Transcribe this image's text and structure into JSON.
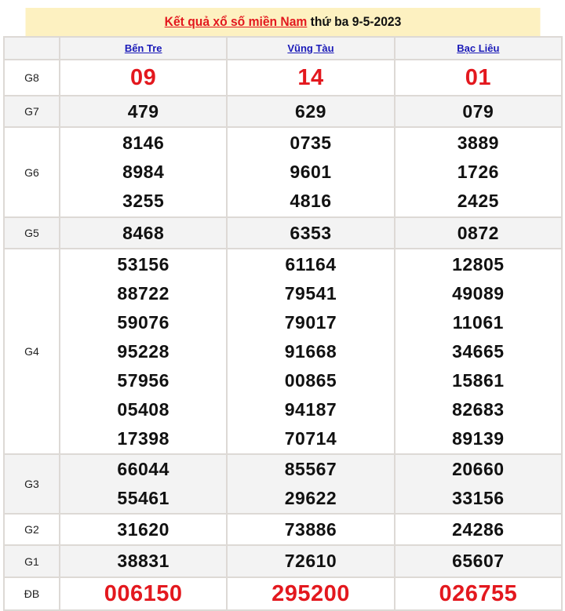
{
  "title": {
    "link": "Kết quả xổ số miền Nam",
    "suffix": " thứ ba 9-5-2023"
  },
  "provinces": [
    "Bến Tre",
    "Vũng Tàu",
    "Bạc Liêu"
  ],
  "prizes": [
    {
      "label": "G8",
      "values": [
        [
          "09"
        ],
        [
          "14"
        ],
        [
          "01"
        ]
      ],
      "highlight": true
    },
    {
      "label": "G7",
      "values": [
        [
          "479"
        ],
        [
          "629"
        ],
        [
          "079"
        ]
      ]
    },
    {
      "label": "G6",
      "values": [
        [
          "8146",
          "8984",
          "3255"
        ],
        [
          "0735",
          "9601",
          "4816"
        ],
        [
          "3889",
          "1726",
          "2425"
        ]
      ]
    },
    {
      "label": "G5",
      "values": [
        [
          "8468"
        ],
        [
          "6353"
        ],
        [
          "0872"
        ]
      ]
    },
    {
      "label": "G4",
      "values": [
        [
          "53156",
          "88722",
          "59076",
          "95228",
          "57956",
          "05408",
          "17398"
        ],
        [
          "61164",
          "79541",
          "79017",
          "91668",
          "00865",
          "94187",
          "70714"
        ],
        [
          "12805",
          "49089",
          "11061",
          "34665",
          "15861",
          "82683",
          "89139"
        ]
      ]
    },
    {
      "label": "G3",
      "values": [
        [
          "66044",
          "55461"
        ],
        [
          "85567",
          "29622"
        ],
        [
          "20660",
          "33156"
        ]
      ]
    },
    {
      "label": "G2",
      "values": [
        [
          "31620"
        ],
        [
          "73886"
        ],
        [
          "24286"
        ]
      ]
    },
    {
      "label": "G1",
      "values": [
        [
          "38831"
        ],
        [
          "72610"
        ],
        [
          "65607"
        ]
      ]
    },
    {
      "label": "ĐB",
      "values": [
        [
          "006150"
        ],
        [
          "295200"
        ],
        [
          "026755"
        ]
      ],
      "highlight": true
    }
  ],
  "colors": {
    "accent": "#e3181e",
    "header_bg": "#fdf1c1",
    "row_alt": "#f3f3f3",
    "link": "#1a1ab8"
  }
}
